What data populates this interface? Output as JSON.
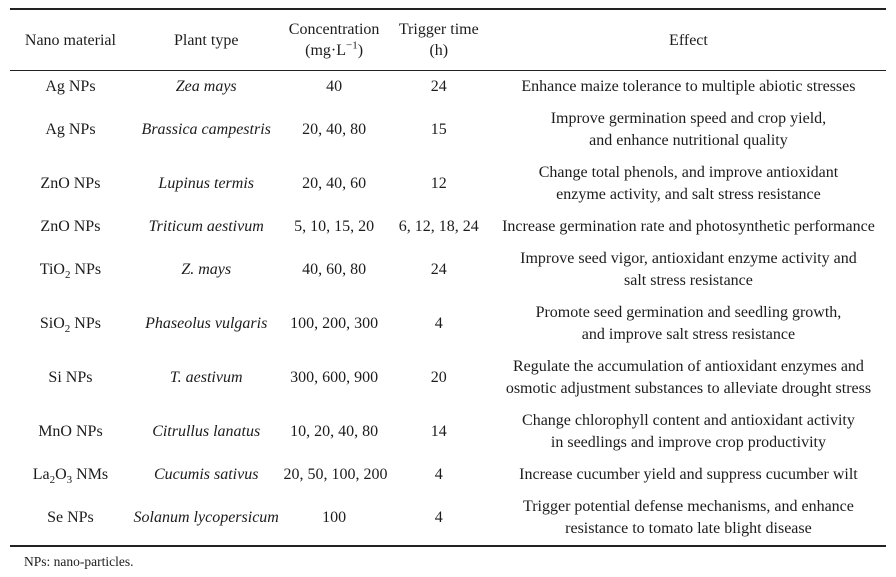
{
  "table": {
    "columns": [
      {
        "label": "Nano material"
      },
      {
        "label": "Plant type"
      },
      {
        "label": "Concentration\n(mg·L^{−1})"
      },
      {
        "label": "Trigger time\n(h)"
      },
      {
        "label": "Effect"
      }
    ],
    "rows": [
      {
        "material": "Ag NPs",
        "plant": "Zea mays",
        "concentration": "40",
        "trigger_time": "24",
        "effect": "Enhance maize tolerance to multiple abiotic stresses"
      },
      {
        "material": "Ag NPs",
        "plant": "Brassica campestris",
        "concentration": "20, 40, 80",
        "trigger_time": "15",
        "effect": "Improve germination speed and crop yield,\nand enhance nutritional quality"
      },
      {
        "material": "ZnO NPs",
        "plant": "Lupinus termis",
        "concentration": "20, 40, 60",
        "trigger_time": "12",
        "effect": "Change total phenols, and improve antioxidant\nenzyme activity, and salt stress resistance"
      },
      {
        "material": "ZnO NPs",
        "plant": "Triticum aestivum",
        "concentration": "5, 10, 15, 20",
        "trigger_time": "6, 12, 18, 24",
        "effect": "Increase germination rate and photosynthetic performance"
      },
      {
        "material": "TiO_{2} NPs",
        "plant": "Z. mays",
        "concentration": "40, 60, 80",
        "trigger_time": "24",
        "effect": "Improve seed vigor, antioxidant enzyme activity and\nsalt stress resistance"
      },
      {
        "material": "SiO_{2} NPs",
        "plant": "Phaseolus vulgaris",
        "concentration": "100, 200, 300",
        "trigger_time": "4",
        "effect": "Promote seed germination and seedling growth,\nand improve salt stress resistance"
      },
      {
        "material": "Si NPs",
        "plant": "T. aestivum",
        "concentration": "300, 600, 900",
        "trigger_time": "20",
        "effect": "Regulate the accumulation of antioxidant enzymes and\nosmotic adjustment substances to alleviate drought stress"
      },
      {
        "material": "MnO NPs",
        "plant": "Citrullus lanatus",
        "concentration": "10, 20, 40, 80",
        "trigger_time": "14",
        "effect": "Change chlorophyll content and antioxidant activity\nin seedlings and improve crop productivity"
      },
      {
        "material": "La_{2}O_{3} NMs",
        "plant": "Cucumis sativus",
        "concentration": "20, 50, 100, 200",
        "trigger_time": "4",
        "effect": "Increase cucumber yield and suppress cucumber wilt"
      },
      {
        "material": "Se NPs",
        "plant": "Solanum lycopersicum",
        "concentration": "100",
        "trigger_time": "4",
        "effect": "Trigger potential defense mechanisms, and enhance\nresistance to tomato late blight disease"
      }
    ]
  },
  "footnote": "NPs: nano-particles."
}
